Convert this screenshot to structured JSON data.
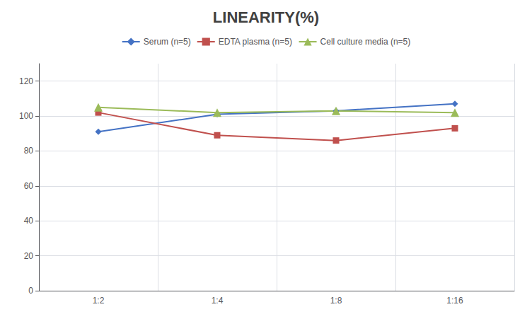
{
  "chart_data": {
    "type": "line",
    "title": "LINEARITY(%)",
    "categories": [
      "1:2",
      "1:4",
      "1:8",
      "1:16"
    ],
    "series": [
      {
        "name": "Serum (n=5)",
        "color": "#4472C4",
        "marker": "diamond",
        "values": [
          91,
          101,
          103,
          107
        ]
      },
      {
        "name": "EDTA plasma (n=5)",
        "color": "#C0504D",
        "marker": "square",
        "values": [
          102,
          89,
          86,
          93
        ]
      },
      {
        "name": "Cell culture media (n=5)",
        "color": "#9BBB59",
        "marker": "triangle",
        "values": [
          105,
          102,
          103,
          102
        ]
      }
    ],
    "ylim": [
      0,
      130
    ],
    "yticks": [
      0,
      20,
      40,
      60,
      80,
      100,
      120
    ],
    "grid": true,
    "legend": "top"
  }
}
